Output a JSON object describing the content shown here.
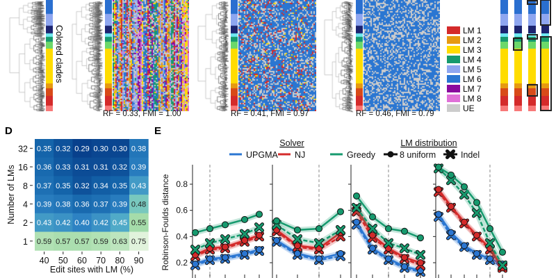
{
  "top_panel": {
    "clade_label": "Colored clades",
    "captions": [
      "RF = 0.33, FMI = 1.00",
      "RF = 0.41, FMI = 0.97",
      "RF = 0.46, FMI = 0.79"
    ],
    "legend": [
      {
        "label": "LM 1",
        "color": "#d42a2a"
      },
      {
        "label": "LM 2",
        "color": "#e69a10"
      },
      {
        "label": "LM 3",
        "color": "#ffdc00"
      },
      {
        "label": "LM 4",
        "color": "#169a6e"
      },
      {
        "label": "LM 5",
        "color": "#8ea6f0"
      },
      {
        "label": "LM 6",
        "color": "#2a76d2"
      },
      {
        "label": "LM 7",
        "color": "#8a0a9e"
      },
      {
        "label": "LM 8",
        "color": "#e070d8"
      },
      {
        "label": "UE",
        "color": "#cccccc"
      }
    ],
    "clade_colors": [
      "#2a6fd0",
      "#8ea6f0",
      "#1c2470",
      "#6fe8f0",
      "#169a6e",
      "#6cd86a",
      "#ffdc00",
      "#e69a10",
      "#d84a18",
      "#d42a2a",
      "#f87878"
    ]
  },
  "chart_data": [
    {
      "panel": "D",
      "type": "heatmap",
      "xlabel": "Edit sites with LM (%)",
      "ylabel": "Number of LMs",
      "x_categories": [
        "40",
        "50",
        "60",
        "70",
        "80",
        "90"
      ],
      "y_categories": [
        "32",
        "16",
        "8",
        "4",
        "2",
        "1"
      ],
      "values": [
        [
          0.35,
          0.32,
          0.29,
          0.3,
          0.3,
          0.38
        ],
        [
          0.36,
          0.33,
          0.31,
          0.31,
          0.32,
          0.39
        ],
        [
          0.37,
          0.35,
          0.32,
          0.34,
          0.35,
          0.43
        ],
        [
          0.39,
          0.38,
          0.36,
          0.37,
          0.39,
          0.48
        ],
        [
          0.43,
          0.42,
          0.4,
          0.42,
          0.45,
          0.55
        ],
        [
          0.59,
          0.57,
          0.57,
          0.59,
          0.63,
          0.75
        ]
      ],
      "value_labels": [
        [
          "0.35",
          "0.32",
          "0.29",
          "0.30",
          "0.30",
          "0.38"
        ],
        [
          "0.36",
          "0.33",
          "0.31",
          "0.31",
          "0.32",
          "0.39"
        ],
        [
          "0.37",
          "0.35",
          "0.32",
          "0.34",
          "0.35",
          "0.43"
        ],
        [
          "0.39",
          "0.38",
          "0.36",
          "0.37",
          "0.39",
          "0.48"
        ],
        [
          "0.43",
          "0.42",
          "0.40",
          "0.42",
          "0.45",
          "0.55"
        ],
        [
          "0.59",
          "0.57",
          "0.57",
          "0.59",
          "0.63",
          "0.75"
        ]
      ]
    },
    {
      "panel": "E",
      "type": "line",
      "ylabel": "Robinson-Foulds distance",
      "ylim": [
        0.15,
        0.95
      ],
      "yticks": [
        "0.2",
        "0.4",
        "0.6",
        "0.8"
      ],
      "legend": {
        "solver_title": "Solver",
        "solvers": [
          {
            "name": "UPGMA",
            "color": "#2a76d2"
          },
          {
            "name": "NJ",
            "color": "#d42a2a"
          },
          {
            "name": "Greedy",
            "color": "#169a6e"
          }
        ],
        "dist_title": "LM distribution",
        "distributions": [
          {
            "name": "8 uniform",
            "marker": "circle",
            "line": "solid"
          },
          {
            "name": "Indel",
            "marker": "cross",
            "line": "dashed"
          }
        ]
      },
      "subplots": [
        {
          "n": 5,
          "dashed_at": 1,
          "series": {
            "Greedy": {
              "uniform": [
                0.43,
                0.46,
                0.49,
                0.53,
                0.57
              ],
              "indel": [
                0.3,
                0.35,
                0.38,
                0.42,
                0.47
              ]
            },
            "NJ": {
              "uniform": [
                0.26,
                0.31,
                0.32,
                0.37,
                0.41
              ],
              "indel": [
                0.25,
                0.3,
                0.31,
                0.36,
                0.4
              ]
            },
            "UPGMA": {
              "uniform": [
                0.19,
                0.23,
                0.24,
                0.27,
                0.3
              ],
              "indel": [
                0.18,
                0.22,
                0.23,
                0.26,
                0.29
              ]
            }
          }
        },
        {
          "n": 4,
          "dashed_at": 2,
          "series": {
            "Greedy": {
              "uniform": [
                0.52,
                0.45,
                0.46,
                0.59
              ],
              "indel": [
                0.49,
                0.38,
                0.35,
                0.45
              ]
            },
            "NJ": {
              "uniform": [
                0.45,
                0.33,
                0.31,
                0.43
              ],
              "indel": [
                0.44,
                0.32,
                0.3,
                0.4
              ]
            },
            "UPGMA": {
              "uniform": [
                0.37,
                0.27,
                0.23,
                0.27
              ],
              "indel": [
                0.36,
                0.26,
                0.22,
                0.25
              ]
            }
          }
        },
        {
          "n": 5,
          "dashed_at": 2,
          "series": {
            "Greedy": {
              "uniform": [
                0.71,
                0.55,
                0.46,
                0.44,
                0.39
              ],
              "indel": [
                0.62,
                0.46,
                0.35,
                0.31,
                0.26
              ]
            },
            "NJ": {
              "uniform": [
                0.62,
                0.41,
                0.31,
                0.24,
                0.2
              ],
              "indel": [
                0.59,
                0.39,
                0.3,
                0.23,
                0.18
              ]
            },
            "UPGMA": {
              "uniform": [
                0.51,
                0.31,
                0.23,
                0.17,
                0.14
              ],
              "indel": [
                0.49,
                0.3,
                0.22,
                0.16,
                0.13
              ]
            }
          }
        },
        {
          "n": 6,
          "dashed_at": 4,
          "series": {
            "Greedy": {
              "uniform": [
                0.93,
                0.87,
                0.78,
                0.66,
                0.46,
                0.28
              ],
              "indel": [
                0.92,
                0.83,
                0.72,
                0.58,
                0.35,
                0.18
              ]
            },
            "NJ": {
              "uniform": [
                0.76,
                0.63,
                0.51,
                0.41,
                0.31,
                0.16
              ],
              "indel": [
                0.74,
                0.62,
                0.5,
                0.4,
                0.3,
                0.16
              ]
            },
            "UPGMA": {
              "uniform": [
                0.57,
                0.43,
                0.33,
                0.27,
                0.23,
                0.19
              ],
              "indel": [
                0.55,
                0.41,
                0.32,
                0.26,
                0.22,
                0.17
              ]
            }
          }
        }
      ]
    }
  ],
  "labels": {
    "D": "D",
    "E": "E"
  }
}
